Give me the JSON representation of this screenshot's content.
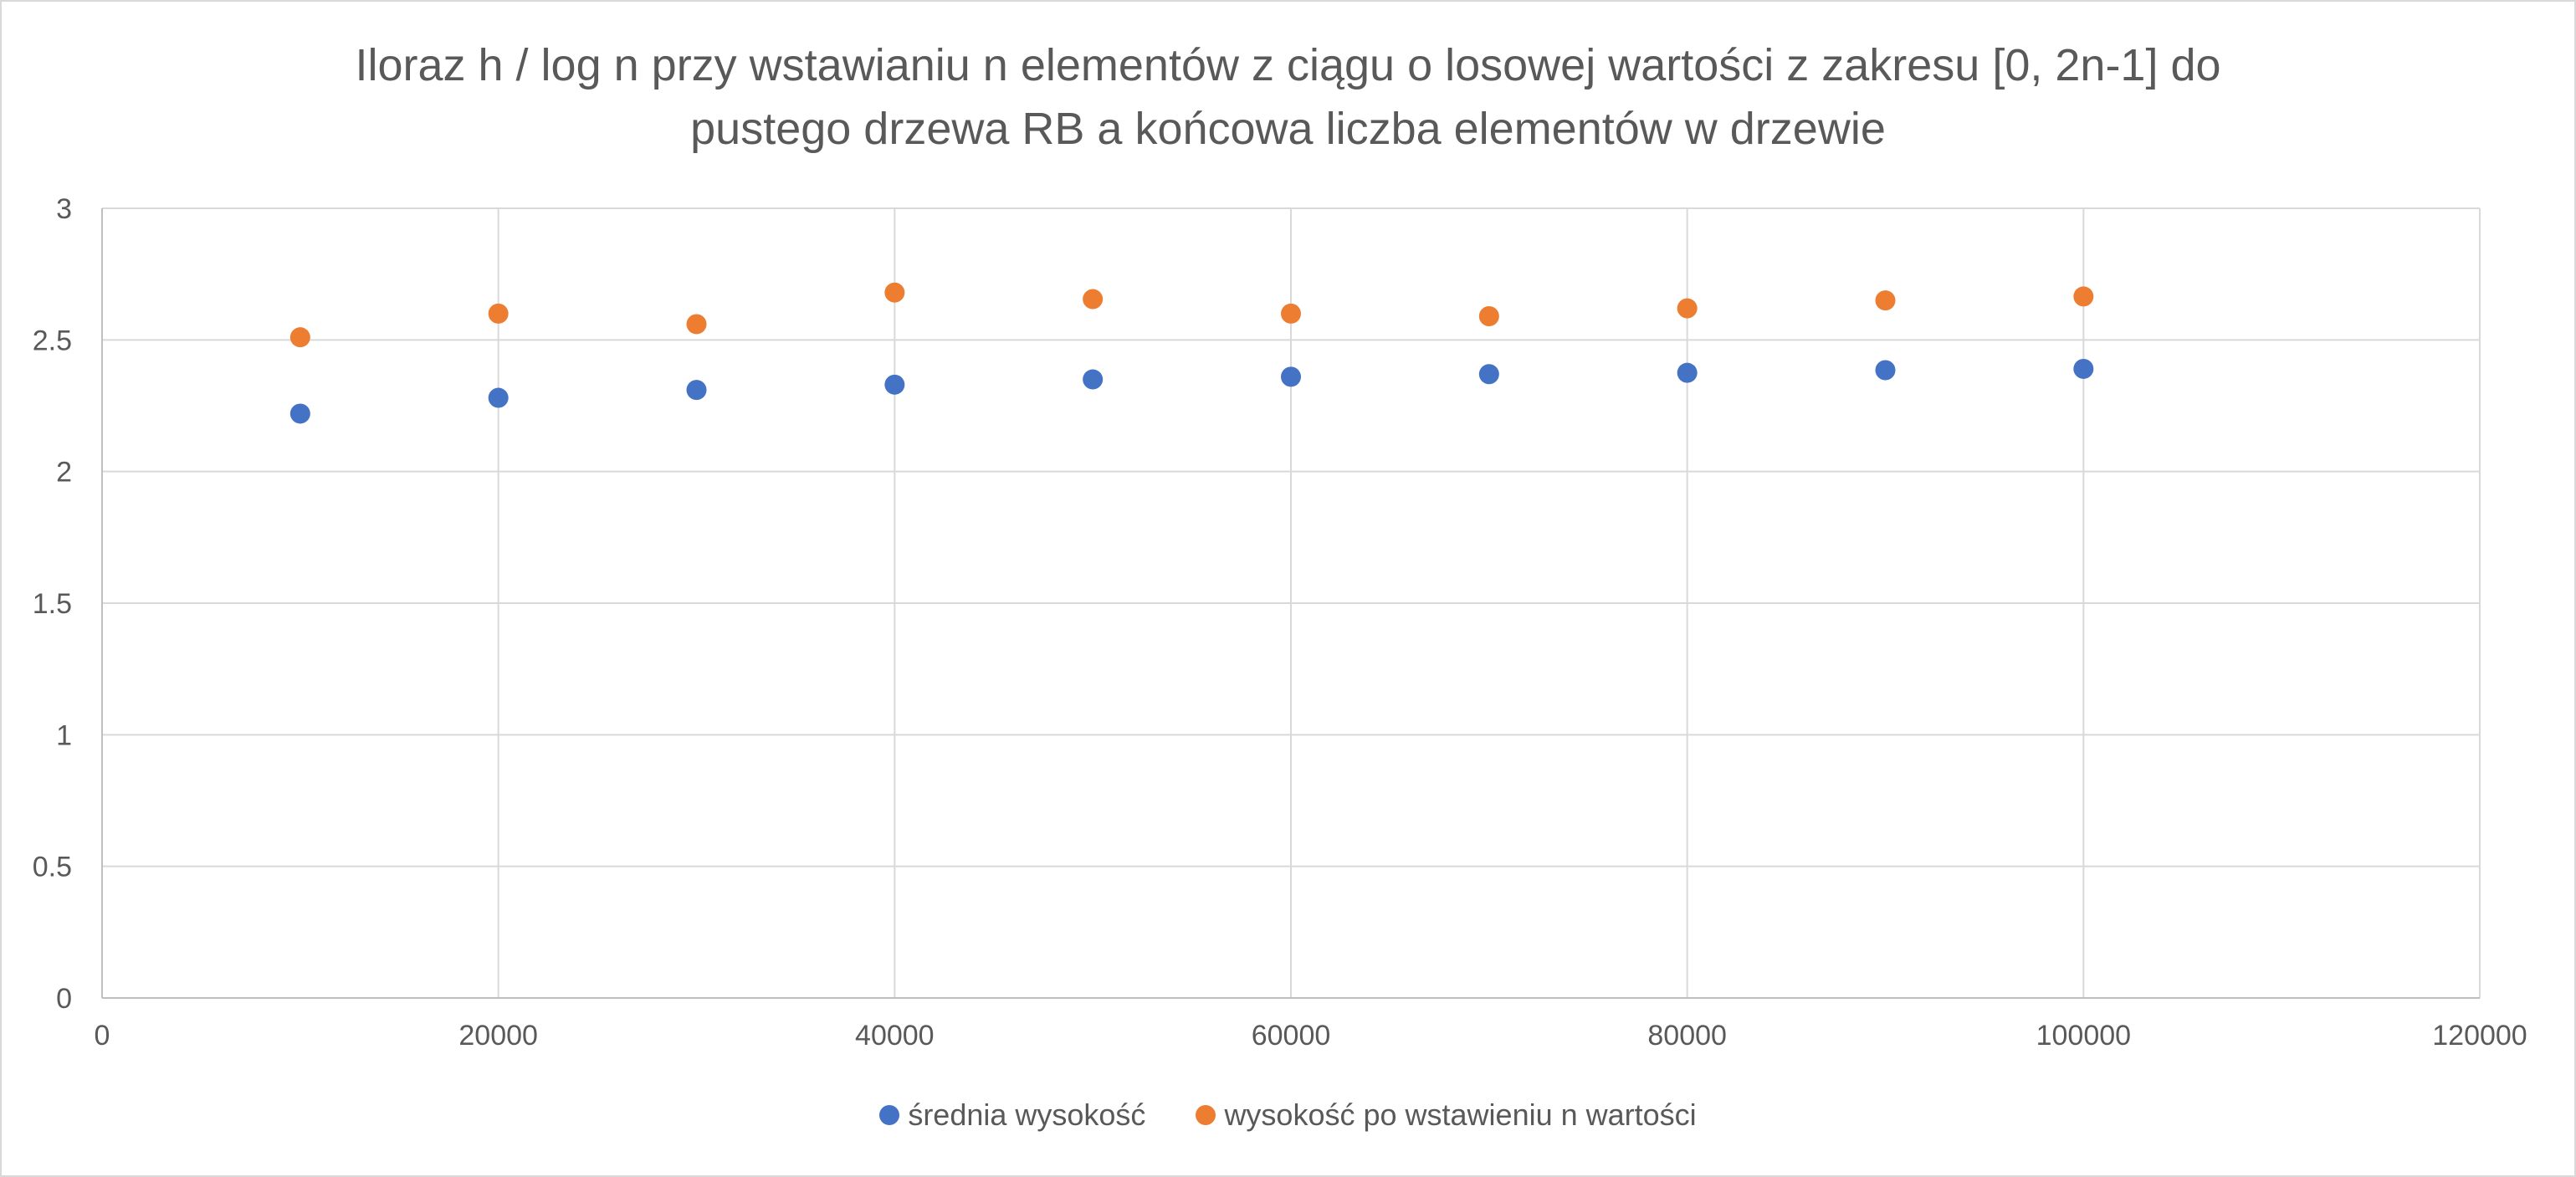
{
  "chart_data": {
    "type": "scatter",
    "title": "Iloraz h / log n przy wstawianiu n elementów z ciągu o losowej wartości z zakresu [0, 2n-1] do pustego drzewa RB a końcowa liczba elementów w drzewie",
    "title_lines": [
      "Iloraz h / log n przy wstawianiu n elementów z ciągu o losowej wartości z zakresu [0, 2n-1] do",
      "pustego drzewa RB a końcowa liczba elementów w drzewie"
    ],
    "xlabel": "",
    "ylabel": "",
    "xlim": [
      0,
      120000
    ],
    "ylim": [
      0,
      3
    ],
    "x_ticks": [
      "0",
      "20000",
      "40000",
      "60000",
      "80000",
      "100000",
      "120000"
    ],
    "y_ticks": [
      "0",
      "0.5",
      "1",
      "1.5",
      "2",
      "2.5",
      "3"
    ],
    "x_tick_values": [
      0,
      20000,
      40000,
      60000,
      80000,
      100000,
      120000
    ],
    "y_tick_values": [
      0,
      0.5,
      1,
      1.5,
      2,
      2.5,
      3
    ],
    "grid": true,
    "legend_position": "bottom",
    "series": [
      {
        "name": "średnia wysokość",
        "color": "#4472c4",
        "x": [
          10000,
          20000,
          30000,
          40000,
          50000,
          60000,
          70000,
          80000,
          90000,
          100000
        ],
        "y": [
          2.22,
          2.28,
          2.31,
          2.33,
          2.35,
          2.36,
          2.37,
          2.375,
          2.385,
          2.39
        ]
      },
      {
        "name": "wysokość po wstawieniu n wartości",
        "color": "#ed7d31",
        "x": [
          10000,
          20000,
          30000,
          40000,
          50000,
          60000,
          70000,
          80000,
          90000,
          100000
        ],
        "y": [
          2.51,
          2.6,
          2.56,
          2.68,
          2.655,
          2.6,
          2.59,
          2.62,
          2.65,
          2.665
        ]
      }
    ]
  }
}
